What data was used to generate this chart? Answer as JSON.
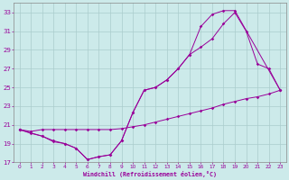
{
  "xlabel": "Windchill (Refroidissement éolien,°C)",
  "background_color": "#cceaea",
  "grid_color": "#aacccc",
  "line_color": "#990099",
  "xlim": [
    -0.5,
    23.5
  ],
  "ylim": [
    17,
    34
  ],
  "xticks": [
    0,
    1,
    2,
    3,
    4,
    5,
    6,
    7,
    8,
    9,
    10,
    11,
    12,
    13,
    14,
    15,
    16,
    17,
    18,
    19,
    20,
    21,
    22,
    23
  ],
  "yticks": [
    17,
    19,
    21,
    23,
    25,
    27,
    29,
    31,
    33
  ],
  "curve1_x": [
    0,
    1,
    2,
    3,
    4,
    5,
    6,
    7,
    8,
    9,
    10,
    11,
    12,
    13,
    14,
    15,
    16,
    17,
    18,
    19,
    20,
    21,
    22,
    23
  ],
  "curve1_y": [
    20.5,
    20.3,
    20.5,
    20.5,
    20.5,
    20.5,
    20.5,
    20.5,
    20.5,
    20.6,
    20.8,
    21.0,
    21.3,
    21.6,
    21.9,
    22.2,
    22.5,
    22.8,
    23.2,
    23.5,
    23.8,
    24.0,
    24.3,
    24.7
  ],
  "curve2_x": [
    0,
    1,
    2,
    3,
    4,
    5,
    6,
    7,
    8,
    9,
    10,
    11,
    12,
    13,
    14,
    15,
    16,
    17,
    18,
    19,
    20,
    21,
    22,
    23
  ],
  "curve2_y": [
    20.5,
    20.1,
    19.8,
    19.3,
    19.0,
    18.5,
    17.3,
    17.6,
    17.8,
    19.3,
    22.3,
    24.7,
    25.0,
    25.8,
    27.0,
    28.5,
    29.3,
    30.2,
    31.8,
    33.0,
    31.0,
    27.5,
    27.0,
    24.7
  ],
  "curve3_x": [
    0,
    2,
    3,
    4,
    5,
    6,
    7,
    8,
    9,
    10,
    11,
    12,
    13,
    14,
    15,
    16,
    17,
    18,
    19,
    23
  ],
  "curve3_y": [
    20.5,
    19.8,
    19.2,
    19.0,
    18.5,
    17.3,
    17.6,
    17.8,
    19.3,
    22.3,
    24.7,
    25.0,
    25.8,
    27.0,
    28.5,
    31.5,
    32.8,
    33.2,
    33.2,
    24.7
  ]
}
